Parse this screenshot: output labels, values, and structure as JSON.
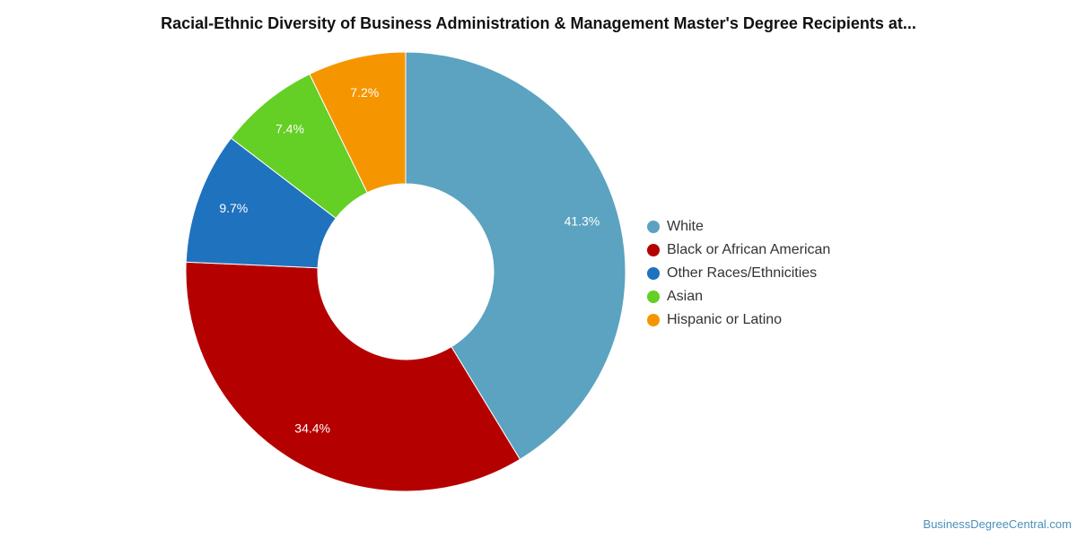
{
  "title": "Racial-Ethnic Diversity of Business Administration & Management Master's Degree Recipients at...",
  "watermark": "BusinessDegreeCentral.com",
  "chart_data": {
    "type": "pie",
    "donut": true,
    "title": "Racial-Ethnic Diversity of Business Administration & Management Master's Degree Recipients at...",
    "legend_position": "right",
    "series": [
      {
        "name": "White",
        "value": 41.3,
        "label": "41.3%",
        "color": "#5ba3c0"
      },
      {
        "name": "Black or African American",
        "value": 34.4,
        "label": "34.4%",
        "color": "#b50000"
      },
      {
        "name": "Other Races/Ethnicities",
        "value": 9.7,
        "label": "9.7%",
        "color": "#1f72bd"
      },
      {
        "name": "Asian",
        "value": 7.4,
        "label": "7.4%",
        "color": "#64cf24"
      },
      {
        "name": "Hispanic or Latino",
        "value": 7.2,
        "label": "7.2%",
        "color": "#f59600"
      }
    ]
  }
}
